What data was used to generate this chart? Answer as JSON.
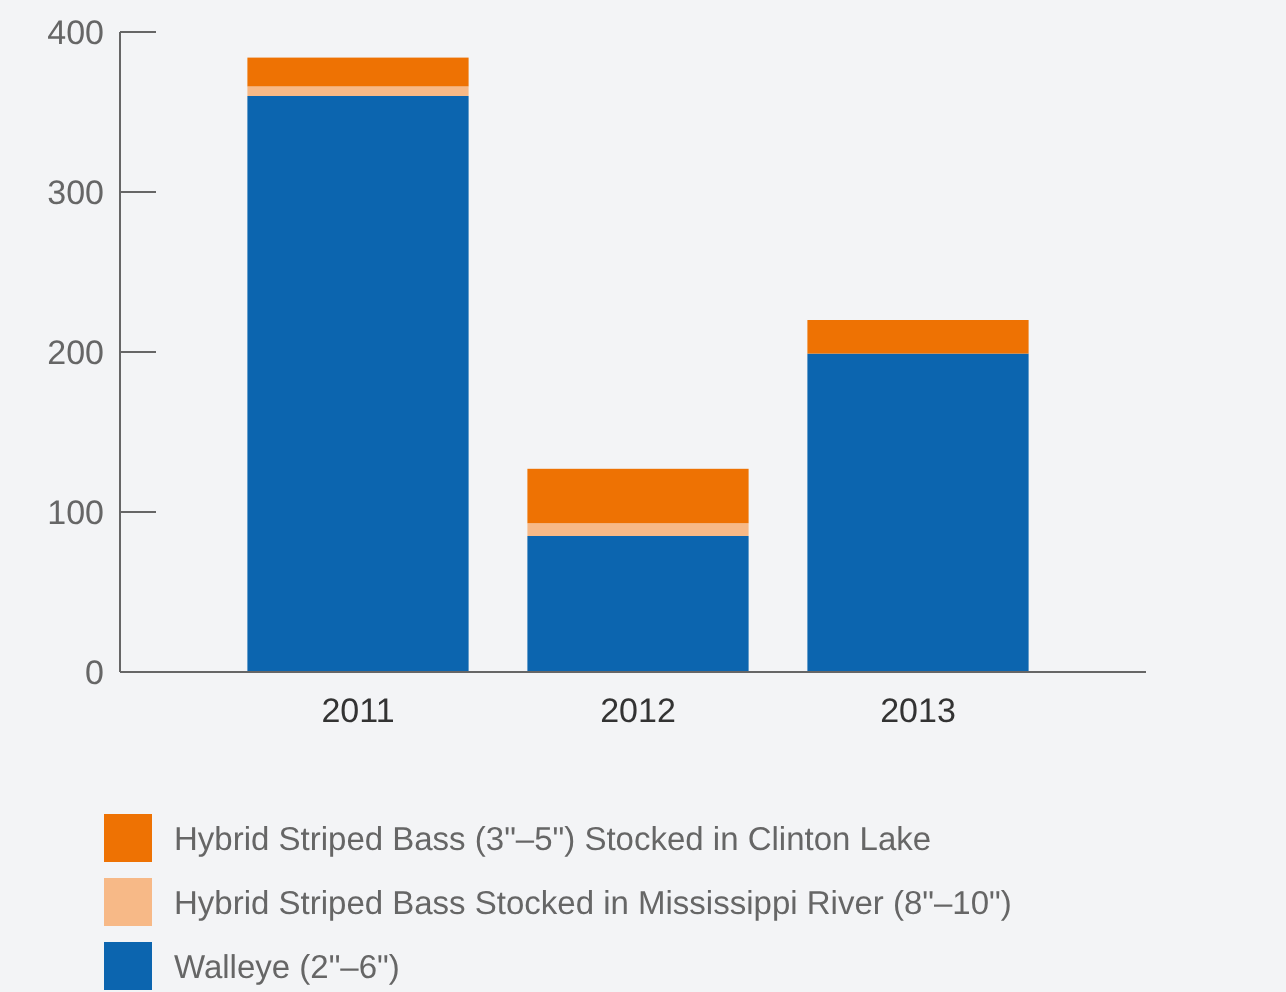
{
  "chart_data": {
    "type": "bar",
    "stacked": true,
    "categories": [
      "2011",
      "2012",
      "2013"
    ],
    "series": [
      {
        "name": "Walleye (2\"–6\")",
        "color": "#0c65af",
        "values": [
          360,
          85,
          199
        ]
      },
      {
        "name": "Hybrid Striped Bass Stocked in Mississippi River (8\"–10\")",
        "color": "#f7b987",
        "values": [
          6,
          8,
          0
        ]
      },
      {
        "name": "Hybrid Striped Bass (3\"–5\") Stocked in Clinton Lake",
        "color": "#ee7203",
        "values": [
          18,
          34,
          21
        ]
      }
    ],
    "ylim": [
      0,
      400
    ],
    "yticks": [
      0,
      100,
      200,
      300,
      400
    ],
    "grid": false,
    "legend": "bottom"
  }
}
